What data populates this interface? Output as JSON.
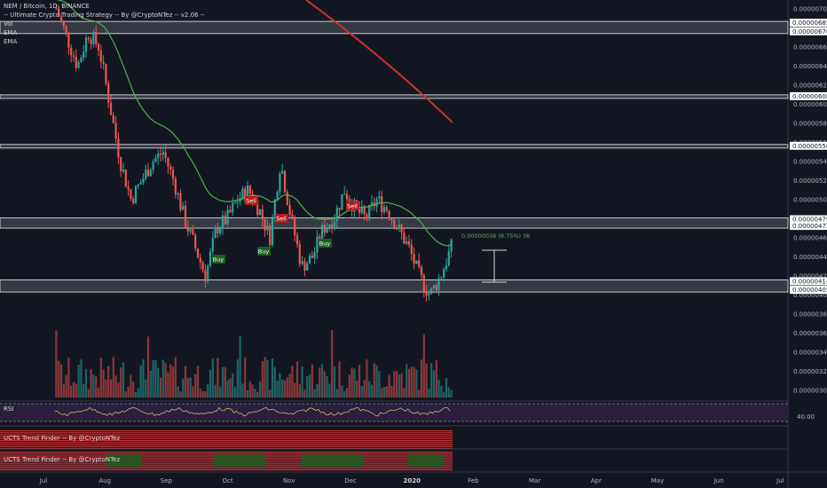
{
  "header": {
    "symbol_line": "NEM / Bitcoin, 1D, BINANCE",
    "strategy_line": "-- Ultimate Crypto Trading Strategy -- By @CryptoNTez -- v2.06 --",
    "indicators": [
      "Vol",
      "EMA",
      "EMA"
    ]
  },
  "panels": {
    "rsi_label": "RSI",
    "rsi_level": "40.00",
    "trend_finder_1": "UCTS Trend Finder -- By @CryptoNTez",
    "trend_finder_2": "UCTS Trend Finder -- By @CryptoNTez"
  },
  "measure": {
    "label": "0.00000036 (8.75%) 36"
  },
  "colors": {
    "up": "#26a69a",
    "down": "#ef5350",
    "ema_fast": "#4caf50",
    "ema_slow": "#d32f2f",
    "rsi_band": "#2a1f3d",
    "rsi_line": "#d4b16a"
  },
  "signals": [
    {
      "label": "Buy",
      "type": "buy"
    },
    {
      "label": "Sell",
      "type": "sell"
    },
    {
      "label": "Buy",
      "type": "buy"
    },
    {
      "label": "Sell",
      "type": "sell"
    },
    {
      "label": "Buy",
      "type": "buy"
    },
    {
      "label": "Sell",
      "type": "sell"
    }
  ],
  "chart_data": {
    "type": "candlestick",
    "x_labels": [
      "Jul",
      "Aug",
      "Sep",
      "Oct",
      "Nov",
      "Dec",
      "2020",
      "Feb",
      "Mar",
      "Apr",
      "May",
      "Jun",
      "Jul"
    ],
    "y_ticks": [
      "0.00000700",
      "0.00000680",
      "0.00000660",
      "0.00000640",
      "0.00000620",
      "0.00000600",
      "0.00000580",
      "0.00000560",
      "0.00000540",
      "0.00000520",
      "0.00000500",
      "0.00000480",
      "0.00000460",
      "0.00000440",
      "0.00000420",
      "0.00000400",
      "0.00000380",
      "0.00000360",
      "0.00000340",
      "0.00000320",
      "0.00000300"
    ],
    "ylim": [
      3e-06,
      7e-06
    ],
    "horizontal_levels": [
      "0.00000685",
      "0.00000676",
      "0.00000608",
      "0.00000556",
      "0.00000479",
      "0.00000472",
      "0.00000414",
      "0.00000405"
    ],
    "price_path": [
      7e-06,
      6.7e-06,
      6.4e-06,
      6.75e-06,
      6.6e-06,
      6e-06,
      5.4e-06,
      5e-06,
      5.2e-06,
      5.4e-06,
      5.5e-06,
      5.2e-06,
      4.8e-06,
      4.5e-06,
      4.2e-06,
      4.7e-06,
      4.8e-06,
      5e-06,
      5.1e-06,
      4.9e-06,
      4.6e-06,
      5.4e-06,
      4.8e-06,
      4.3e-06,
      4.4e-06,
      4.7e-06,
      4.8e-06,
      5.1e-06,
      4.9e-06,
      4.8e-06,
      5e-06,
      4.9e-06,
      4.7e-06,
      4.5e-06,
      4.2e-06,
      4e-06,
      4.2e-06,
      4.5e-06
    ]
  }
}
